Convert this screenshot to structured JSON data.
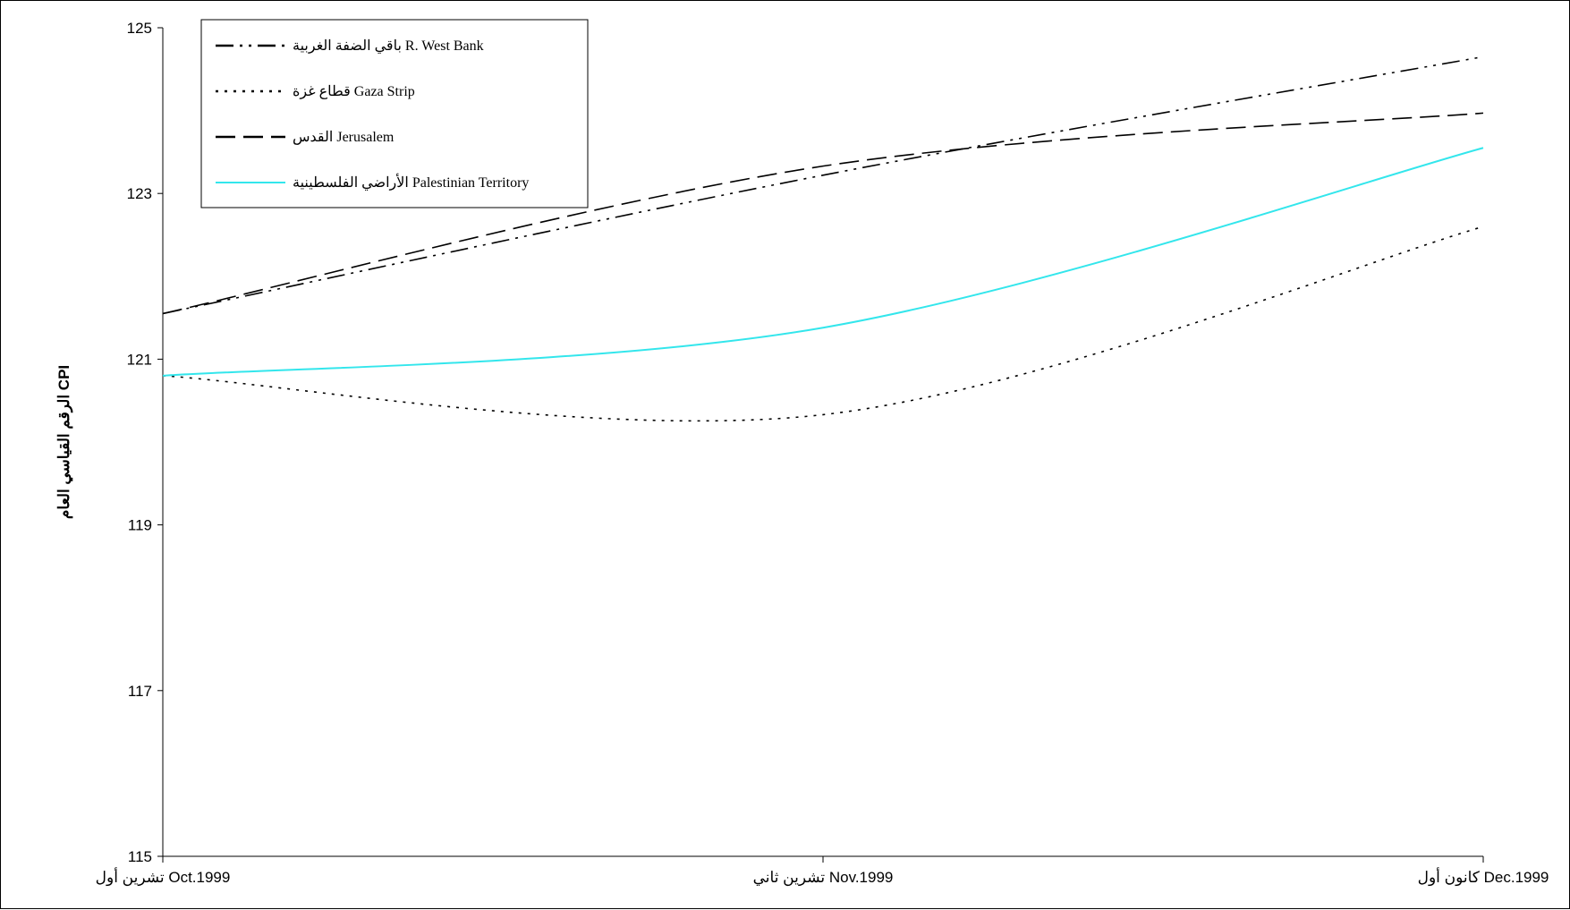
{
  "chart_data": {
    "type": "line",
    "ylabel": "الرقم القياسي العام CPI",
    "ylim": [
      115,
      125
    ],
    "yticks": [
      "115",
      "117",
      "119",
      "121",
      "123",
      "125"
    ],
    "categories": [
      "تشرين أول Oct.1999",
      "تشرين ثاني Nov.1999",
      "كانون أول Dec.1999"
    ],
    "grid": false,
    "legend_position": "top-left",
    "series": [
      {
        "name": "باقي الضفة الغربية R. West Bank",
        "values": [
          121.55,
          123.22,
          124.65
        ],
        "color": "#000000",
        "dash": "dash-dot-dot"
      },
      {
        "name": "قطاع غزة Gaza Strip",
        "values": [
          120.8,
          120.33,
          122.6
        ],
        "color": "#000000",
        "dash": "dotted"
      },
      {
        "name": "القدس Jerusalem",
        "values": [
          121.55,
          123.33,
          123.97
        ],
        "color": "#000000",
        "dash": "dashed"
      },
      {
        "name": "الأراضي الفلسطينية Palestinian Territory",
        "values": [
          120.8,
          121.38,
          123.55
        ],
        "color": "#33e6ec",
        "dash": "solid"
      }
    ]
  }
}
